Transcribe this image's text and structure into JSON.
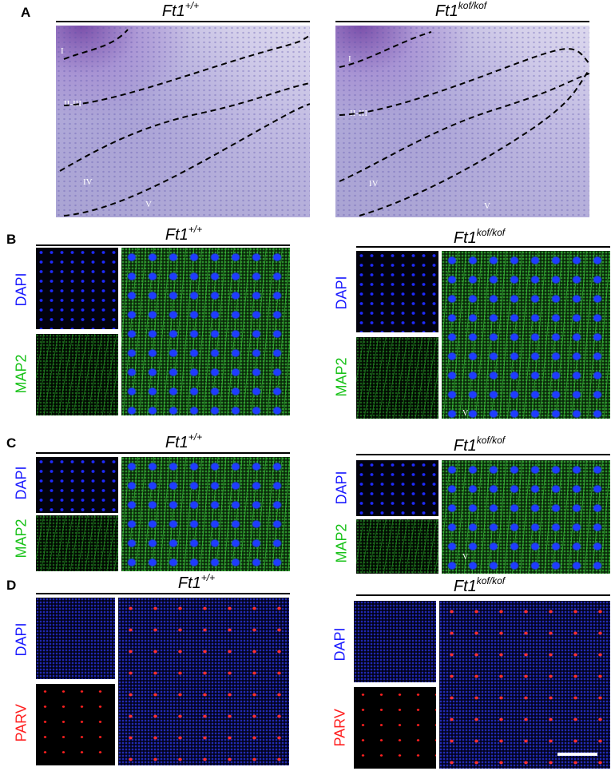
{
  "figure": {
    "panel_letters": [
      "A",
      "B",
      "C",
      "D"
    ],
    "genotype_wt": {
      "base": "Ft1",
      "sup": "+/+"
    },
    "genotype_mut": {
      "base": "Ft1",
      "sup": "kof/kof"
    },
    "panel_a": {
      "layers": [
        "I",
        "II-III",
        "IV",
        "V"
      ]
    },
    "channels": {
      "dapi": "DAPI",
      "map2": "MAP2",
      "parv": "PARV"
    },
    "inset_layer_label": "V",
    "colors": {
      "dapi": "#1a1aff",
      "map2": "#19c219",
      "parv": "#ff1f1f"
    }
  }
}
